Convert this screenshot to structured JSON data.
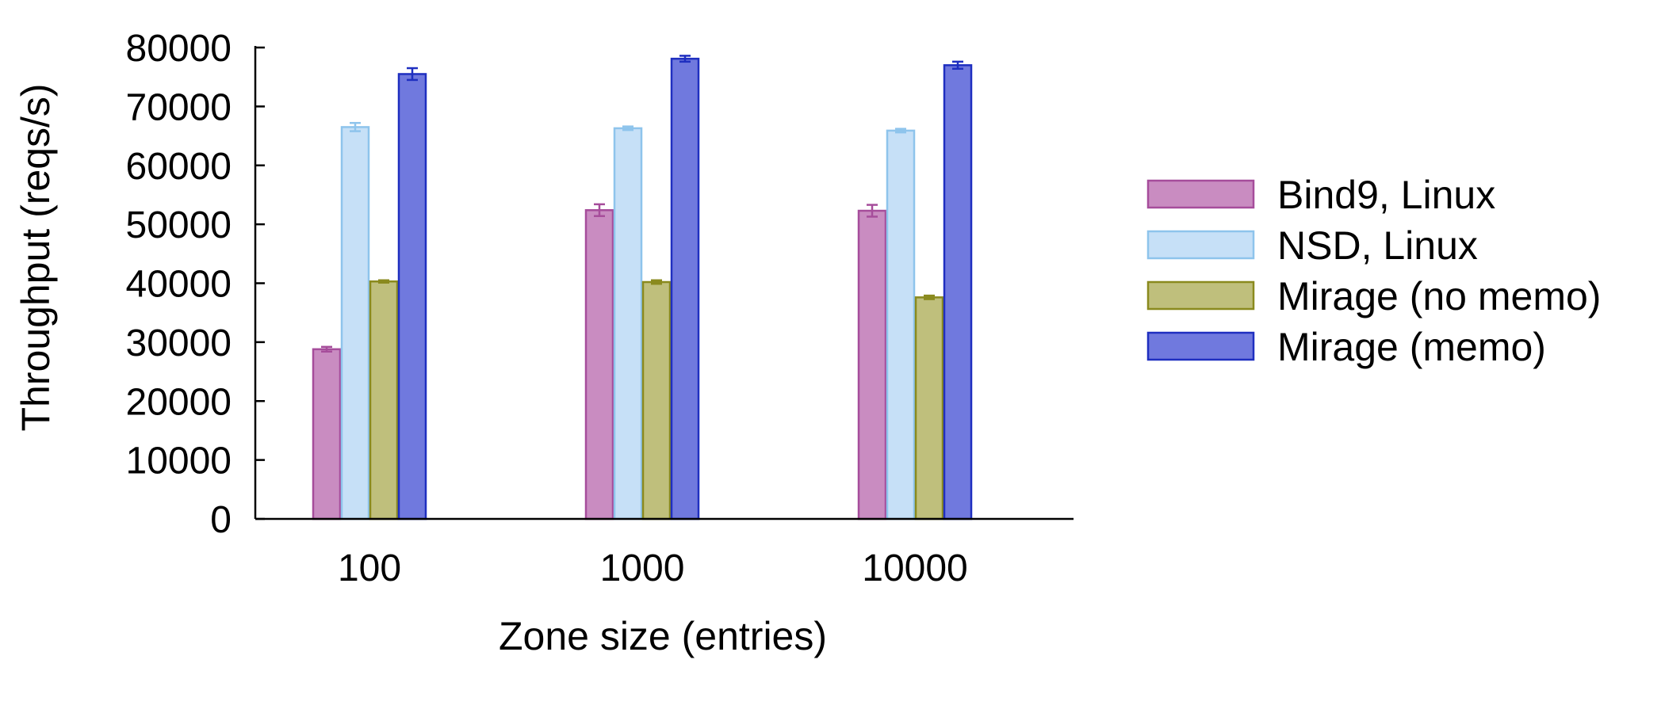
{
  "chart_data": {
    "type": "bar",
    "categories": [
      "100",
      "1000",
      "10000"
    ],
    "xlabel": "Zone size (entries)",
    "ylabel": "Throughput (reqs/s)",
    "ylim": [
      0,
      80000
    ],
    "yticks": [
      0,
      10000,
      20000,
      30000,
      40000,
      50000,
      60000,
      70000,
      80000
    ],
    "grid": false,
    "legend_position": "right",
    "series": [
      {
        "name": "Bind9, Linux",
        "values": [
          28800,
          52400,
          52300
        ],
        "errors": [
          400,
          1000,
          1000
        ],
        "fill": "#c98cc1",
        "stroke": "#a64d9b"
      },
      {
        "name": "NSD, Linux",
        "values": [
          66500,
          66300,
          65900
        ],
        "errors": [
          700,
          300,
          300
        ],
        "fill": "#c6e0f7",
        "stroke": "#8ec4ec"
      },
      {
        "name": "Mirage (no memo)",
        "values": [
          40300,
          40200,
          37600
        ],
        "errors": [
          200,
          300,
          300
        ],
        "fill": "#bfbf7c",
        "stroke": "#8a8a1e"
      },
      {
        "name": "Mirage (memo)",
        "values": [
          75500,
          78100,
          77000
        ],
        "errors": [
          1000,
          500,
          600
        ],
        "fill": "#7079de",
        "stroke": "#1f2fc0"
      }
    ]
  }
}
